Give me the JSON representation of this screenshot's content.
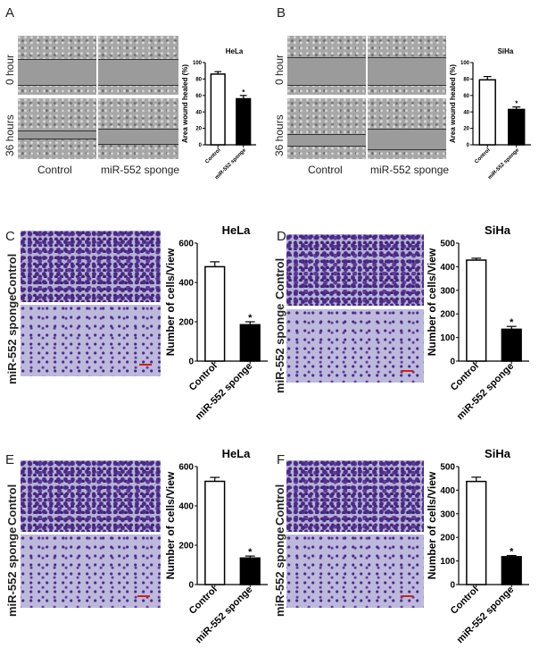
{
  "panels": {
    "A": {
      "label": "A",
      "rows": [
        "0 hour",
        "36 hours"
      ],
      "cols": [
        "Control",
        "miR-552 sponge"
      ]
    },
    "B": {
      "label": "B",
      "rows": [
        "0 hour",
        "36 hours"
      ],
      "cols": [
        "Control",
        "miR-552 sponge"
      ]
    },
    "C": {
      "label": "C",
      "rows": [
        "Control",
        "miR-552 sponge"
      ]
    },
    "D": {
      "label": "D",
      "rows": [
        "Control",
        "miR-552 sponge"
      ]
    },
    "E": {
      "label": "E",
      "rows": [
        "Control",
        "miR-552 sponge"
      ]
    },
    "F": {
      "label": "F",
      "rows": [
        "Control",
        "miR-552 sponge"
      ]
    }
  },
  "chart_data": [
    {
      "panel": "A",
      "type": "bar",
      "title": "HeLa",
      "ylabel": "Area wound healed (%)",
      "categories": [
        "Control",
        "miR-552 sponge"
      ],
      "values": [
        86,
        56
      ],
      "errors": [
        3,
        4
      ],
      "significance": [
        "",
        "*"
      ],
      "ylim": [
        0,
        100
      ],
      "yticks": [
        "0",
        "20",
        "40",
        "60",
        "80",
        "100"
      ],
      "colors": [
        "#ffffff",
        "#000000"
      ],
      "grid": false
    },
    {
      "panel": "B",
      "type": "bar",
      "title": "SiHa",
      "ylabel": "Area wound healed (%)",
      "categories": [
        "Control",
        "miR-552 sponge"
      ],
      "values": [
        79,
        43
      ],
      "errors": [
        4,
        3
      ],
      "significance": [
        "",
        "*"
      ],
      "ylim": [
        0,
        100
      ],
      "yticks": [
        "0",
        "20",
        "40",
        "60",
        "80",
        "100"
      ],
      "colors": [
        "#ffffff",
        "#000000"
      ],
      "grid": false
    },
    {
      "panel": "C",
      "type": "bar",
      "title": "HeLa",
      "ylabel": "Number of cells/View",
      "categories": [
        "Control",
        "miR-552 sponge"
      ],
      "values": [
        480,
        185
      ],
      "errors": [
        25,
        15
      ],
      "significance": [
        "",
        "*"
      ],
      "ylim": [
        0,
        600
      ],
      "yticks": [
        "0",
        "200",
        "400",
        "600"
      ],
      "colors": [
        "#ffffff",
        "#000000"
      ],
      "grid": false
    },
    {
      "panel": "D",
      "type": "bar",
      "title": "SiHa",
      "ylabel": "Number of cells/View",
      "categories": [
        "Control",
        "miR-552 sponge"
      ],
      "values": [
        428,
        135
      ],
      "errors": [
        8,
        12
      ],
      "significance": [
        "",
        "*"
      ],
      "ylim": [
        0,
        500
      ],
      "yticks": [
        "0",
        "100",
        "200",
        "300",
        "400",
        "500"
      ],
      "colors": [
        "#ffffff",
        "#000000"
      ],
      "grid": false
    },
    {
      "panel": "E",
      "type": "bar",
      "title": "HeLa",
      "ylabel": "Number of cells/View",
      "categories": [
        "Control",
        "miR-552 sponge"
      ],
      "values": [
        525,
        135
      ],
      "errors": [
        20,
        10
      ],
      "significance": [
        "",
        "*"
      ],
      "ylim": [
        0,
        600
      ],
      "yticks": [
        "0",
        "200",
        "400",
        "600"
      ],
      "colors": [
        "#ffffff",
        "#000000"
      ],
      "grid": false
    },
    {
      "panel": "F",
      "type": "bar",
      "title": "SiHa",
      "ylabel": "Number of cells/View",
      "categories": [
        "Control",
        "miR-552 sponge"
      ],
      "values": [
        437,
        118
      ],
      "errors": [
        18,
        5
      ],
      "significance": [
        "",
        "*"
      ],
      "ylim": [
        0,
        500
      ],
      "yticks": [
        "0",
        "100",
        "200",
        "300",
        "400",
        "500"
      ],
      "colors": [
        "#ffffff",
        "#000000"
      ],
      "grid": false
    }
  ]
}
